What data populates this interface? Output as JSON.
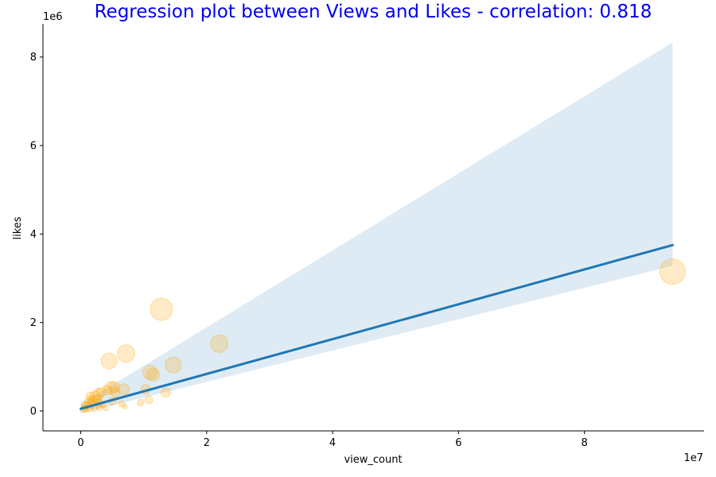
{
  "chart_data": {
    "type": "scatter",
    "title": "Regression plot between Views and Likes - correlation: 0.818",
    "xlabel": "view_count",
    "ylabel": "likes",
    "x_offset_label": "1e7",
    "y_offset_label": "1e6",
    "xlim": [
      -6000000,
      99000000
    ],
    "ylim": [
      -450000,
      8750000
    ],
    "x_ticks": [
      0,
      20000000,
      40000000,
      60000000,
      80000000
    ],
    "x_tick_labels": [
      "0",
      "2",
      "4",
      "6",
      "8"
    ],
    "y_ticks": [
      0,
      2000000,
      4000000,
      6000000,
      8000000
    ],
    "y_tick_labels": [
      "0",
      "2",
      "4",
      "6",
      "8"
    ],
    "grid": false,
    "colors": {
      "title": "#0000ee",
      "points": "#ffa500",
      "regression_line": "#1f77b4",
      "confidence_band": "#1f77b4"
    },
    "regression_line": {
      "x": [
        0,
        94000000
      ],
      "y": [
        50000,
        3750000
      ]
    },
    "confidence_band": {
      "x": [
        0,
        94000000
      ],
      "upper": [
        150000,
        8330000
      ],
      "lower": [
        -50000,
        3280000
      ]
    },
    "points": [
      {
        "x": 94000000,
        "y": 3150000,
        "size": 16
      },
      {
        "x": 12800000,
        "y": 2300000,
        "size": 14
      },
      {
        "x": 22000000,
        "y": 1520000,
        "size": 11
      },
      {
        "x": 7200000,
        "y": 1300000,
        "size": 11
      },
      {
        "x": 4500000,
        "y": 1130000,
        "size": 10
      },
      {
        "x": 14700000,
        "y": 1040000,
        "size": 10
      },
      {
        "x": 11000000,
        "y": 870000,
        "size": 9
      },
      {
        "x": 11500000,
        "y": 820000,
        "size": 8
      },
      {
        "x": 6800000,
        "y": 490000,
        "size": 7
      },
      {
        "x": 10300000,
        "y": 490000,
        "size": 6
      },
      {
        "x": 13500000,
        "y": 420000,
        "size": 6
      },
      {
        "x": 4800000,
        "y": 520000,
        "size": 8
      },
      {
        "x": 5300000,
        "y": 540000,
        "size": 7
      },
      {
        "x": 5500000,
        "y": 420000,
        "size": 6
      },
      {
        "x": 4200000,
        "y": 470000,
        "size": 6
      },
      {
        "x": 3200000,
        "y": 420000,
        "size": 6
      },
      {
        "x": 2800000,
        "y": 380000,
        "size": 7
      },
      {
        "x": 2300000,
        "y": 320000,
        "size": 7
      },
      {
        "x": 2600000,
        "y": 260000,
        "size": 6
      },
      {
        "x": 2000000,
        "y": 220000,
        "size": 6
      },
      {
        "x": 1600000,
        "y": 260000,
        "size": 5
      },
      {
        "x": 1200000,
        "y": 200000,
        "size": 5
      },
      {
        "x": 1800000,
        "y": 150000,
        "size": 5
      },
      {
        "x": 2900000,
        "y": 180000,
        "size": 5
      },
      {
        "x": 3500000,
        "y": 140000,
        "size": 4
      },
      {
        "x": 1000000,
        "y": 120000,
        "size": 5
      },
      {
        "x": 700000,
        "y": 80000,
        "size": 4
      },
      {
        "x": 1400000,
        "y": 60000,
        "size": 4
      },
      {
        "x": 400000,
        "y": 40000,
        "size": 4
      },
      {
        "x": 800000,
        "y": 20000,
        "size": 3
      },
      {
        "x": 2200000,
        "y": 60000,
        "size": 4
      },
      {
        "x": 3000000,
        "y": 80000,
        "size": 4
      },
      {
        "x": 4000000,
        "y": 60000,
        "size": 3
      },
      {
        "x": 5000000,
        "y": 220000,
        "size": 5
      },
      {
        "x": 6500000,
        "y": 160000,
        "size": 4
      },
      {
        "x": 7000000,
        "y": 100000,
        "size": 3
      },
      {
        "x": 9500000,
        "y": 190000,
        "size": 4
      },
      {
        "x": 10800000,
        "y": 250000,
        "size": 5
      },
      {
        "x": 600000,
        "y": 150000,
        "size": 4
      },
      {
        "x": 1500000,
        "y": 340000,
        "size": 5
      }
    ]
  }
}
